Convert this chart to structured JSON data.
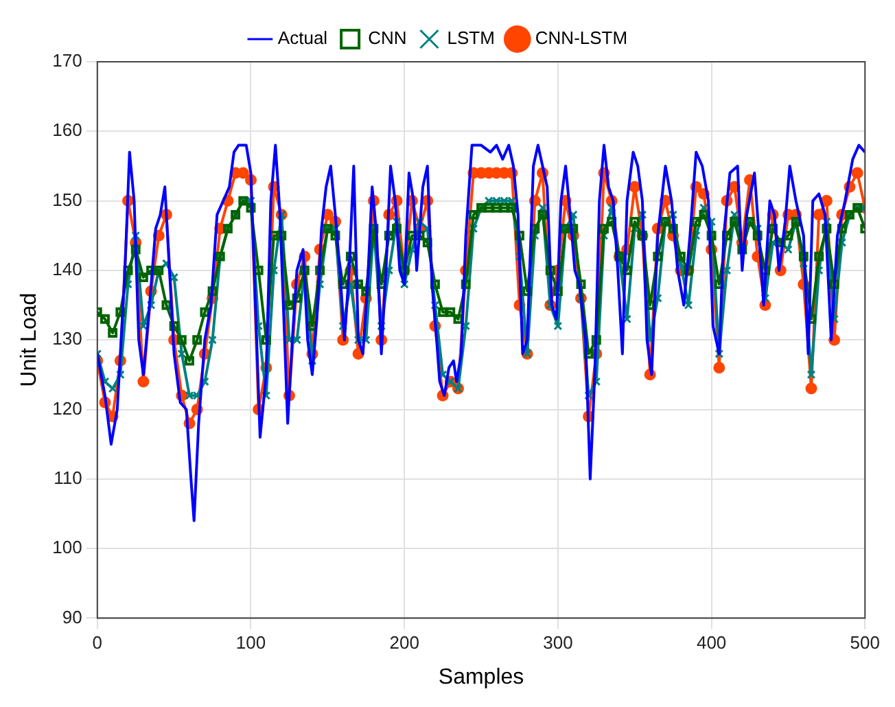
{
  "chart_data": {
    "type": "line",
    "xlabel": "Samples",
    "ylabel": "Unit Load",
    "xlim": [
      0,
      500
    ],
    "xticks": [
      0,
      100,
      200,
      300,
      400,
      500
    ],
    "ylim": [
      90,
      170
    ],
    "yticks": [
      90,
      100,
      110,
      120,
      130,
      140,
      150,
      160,
      170
    ],
    "grid": true,
    "legend": "top",
    "line_style": "solid",
    "series": [
      {
        "name": "Actual",
        "color": "#0000ff",
        "marker": "none",
        "x": [
          0,
          5,
          9,
          13,
          18,
          21,
          24,
          27,
          30,
          34,
          38,
          41,
          44,
          47,
          50,
          54,
          58,
          61,
          63,
          66,
          70,
          74,
          78,
          82,
          86,
          89,
          92,
          97,
          100,
          103,
          106,
          110,
          113,
          116,
          119,
          122,
          124,
          127,
          130,
          134,
          137,
          140,
          143,
          146,
          149,
          152,
          155,
          158,
          161,
          164,
          167,
          170,
          173,
          176,
          179,
          182,
          185,
          188,
          191,
          194,
          197,
          200,
          203,
          206,
          208,
          212,
          215,
          218,
          221,
          223,
          226,
          229,
          232,
          234,
          237,
          240,
          244,
          250,
          256,
          260,
          264,
          268,
          271,
          274,
          277,
          280,
          284,
          287,
          290,
          293,
          296,
          299,
          302,
          305,
          308,
          311,
          314,
          318,
          321,
          324,
          327,
          330,
          333,
          336,
          339,
          342,
          345,
          349,
          352,
          355,
          358,
          361,
          365,
          370,
          374,
          378,
          382,
          386,
          390,
          394,
          398,
          401,
          405,
          408,
          412,
          417,
          420,
          423,
          428,
          431,
          434,
          438,
          441,
          444,
          448,
          451,
          455,
          460,
          463,
          466,
          470,
          474,
          478,
          482,
          487,
          492,
          496,
          500
        ],
        "values": [
          128,
          122,
          115,
          120,
          140,
          157,
          150,
          130,
          125,
          135,
          146,
          148,
          152,
          140,
          128,
          121,
          120,
          110,
          104,
          118,
          130,
          135,
          148,
          150,
          152,
          157,
          158,
          158,
          154,
          135,
          116,
          125,
          150,
          158,
          148,
          130,
          118,
          130,
          140,
          143,
          130,
          125,
          133,
          146,
          152,
          155,
          148,
          140,
          130,
          140,
          155,
          130,
          128,
          138,
          152,
          145,
          128,
          140,
          155,
          150,
          140,
          138,
          154,
          150,
          140,
          152,
          155,
          138,
          130,
          124,
          122,
          126,
          127,
          124,
          128,
          145,
          158,
          158,
          157,
          158,
          156,
          158,
          155,
          148,
          128,
          130,
          155,
          158,
          155,
          152,
          135,
          133,
          150,
          155,
          148,
          140,
          138,
          130,
          110,
          125,
          150,
          158,
          152,
          150,
          140,
          128,
          150,
          157,
          155,
          150,
          130,
          125,
          145,
          155,
          150,
          140,
          135,
          145,
          157,
          155,
          150,
          132,
          128,
          145,
          154,
          155,
          140,
          148,
          154,
          145,
          135,
          150,
          148,
          140,
          147,
          155,
          150,
          145,
          128,
          150,
          151,
          148,
          130,
          145,
          150,
          156,
          158,
          157
        ]
      },
      {
        "name": "CNN",
        "color": "#006400",
        "marker": "square",
        "x": [
          0,
          5,
          10,
          15,
          20,
          25,
          30,
          35,
          40,
          45,
          50,
          55,
          60,
          65,
          70,
          75,
          80,
          85,
          90,
          95,
          100,
          105,
          110,
          115,
          120,
          125,
          130,
          135,
          140,
          145,
          150,
          155,
          160,
          165,
          170,
          175,
          180,
          185,
          190,
          195,
          200,
          205,
          210,
          215,
          220,
          225,
          230,
          235,
          240,
          245,
          250,
          255,
          260,
          265,
          270,
          275,
          280,
          285,
          290,
          295,
          300,
          305,
          310,
          315,
          320,
          325,
          330,
          335,
          340,
          345,
          350,
          355,
          360,
          365,
          370,
          375,
          380,
          385,
          390,
          395,
          400,
          405,
          410,
          415,
          420,
          425,
          430,
          435,
          440,
          445,
          450,
          455,
          460,
          465,
          470,
          475,
          480,
          485,
          490,
          495,
          500
        ],
        "values": [
          134,
          133,
          131,
          134,
          140,
          143,
          139,
          140,
          140,
          135,
          132,
          130,
          127,
          130,
          134,
          137,
          142,
          146,
          148,
          150,
          149,
          140,
          130,
          145,
          145,
          135,
          136,
          140,
          132,
          140,
          146,
          145,
          138,
          142,
          138,
          137,
          146,
          138,
          145,
          146,
          140,
          145,
          145,
          144,
          138,
          134,
          134,
          133,
          138,
          148,
          149,
          149,
          149,
          149,
          149,
          145,
          137,
          146,
          148,
          140,
          137,
          146,
          146,
          138,
          128,
          130,
          146,
          147,
          142,
          140,
          147,
          145,
          135,
          142,
          147,
          146,
          142,
          140,
          147,
          148,
          145,
          138,
          145,
          147,
          143,
          147,
          145,
          140,
          146,
          144,
          145,
          147,
          142,
          133,
          142,
          146,
          138,
          146,
          148,
          149,
          146
        ]
      },
      {
        "name": "LSTM",
        "color": "#008080",
        "marker": "cross",
        "x": [
          0,
          5,
          10,
          15,
          20,
          25,
          30,
          35,
          40,
          45,
          50,
          55,
          60,
          65,
          70,
          75,
          80,
          85,
          90,
          95,
          100,
          105,
          110,
          115,
          120,
          125,
          130,
          135,
          140,
          145,
          150,
          155,
          160,
          165,
          170,
          175,
          180,
          185,
          190,
          195,
          200,
          205,
          210,
          215,
          220,
          225,
          230,
          235,
          240,
          245,
          250,
          255,
          260,
          265,
          270,
          275,
          280,
          285,
          290,
          295,
          300,
          305,
          310,
          315,
          320,
          325,
          330,
          335,
          340,
          345,
          350,
          355,
          360,
          365,
          370,
          375,
          380,
          385,
          390,
          395,
          400,
          405,
          410,
          415,
          420,
          425,
          430,
          435,
          440,
          445,
          450,
          455,
          460,
          465,
          470,
          475,
          480,
          485,
          490,
          495,
          500
        ],
        "values": [
          128,
          124,
          123,
          125,
          138,
          145,
          132,
          135,
          140,
          141,
          139,
          128,
          122,
          122,
          124,
          130,
          142,
          146,
          148,
          150,
          150,
          132,
          122,
          140,
          148,
          130,
          130,
          140,
          127,
          138,
          146,
          146,
          132,
          138,
          130,
          130,
          146,
          132,
          140,
          147,
          138,
          143,
          147,
          146,
          135,
          125,
          124,
          123,
          132,
          146,
          149,
          150,
          150,
          150,
          150,
          142,
          128,
          145,
          149,
          135,
          132,
          146,
          148,
          136,
          122,
          124,
          145,
          149,
          142,
          133,
          146,
          148,
          130,
          136,
          147,
          148,
          141,
          135,
          145,
          149,
          147,
          128,
          140,
          148,
          143,
          147,
          146,
          136,
          144,
          144,
          143,
          147,
          141,
          125,
          140,
          147,
          133,
          144,
          148,
          149,
          149
        ]
      },
      {
        "name": "CNN-LSTM",
        "color": "#ff4500",
        "marker": "circle",
        "x": [
          0,
          5,
          10,
          15,
          20,
          25,
          30,
          35,
          40,
          45,
          50,
          55,
          60,
          65,
          70,
          75,
          80,
          85,
          90,
          95,
          100,
          105,
          110,
          115,
          120,
          125,
          130,
          135,
          140,
          145,
          150,
          155,
          160,
          165,
          170,
          175,
          180,
          185,
          190,
          195,
          200,
          205,
          210,
          215,
          220,
          225,
          230,
          235,
          240,
          245,
          250,
          255,
          260,
          265,
          270,
          275,
          280,
          285,
          290,
          295,
          300,
          305,
          310,
          315,
          320,
          325,
          330,
          335,
          340,
          345,
          350,
          355,
          360,
          365,
          370,
          375,
          380,
          385,
          390,
          395,
          400,
          405,
          410,
          415,
          420,
          425,
          430,
          435,
          440,
          445,
          450,
          455,
          460,
          465,
          470,
          475,
          480,
          485,
          490,
          495,
          500
        ],
        "values": [
          127,
          121,
          119,
          127,
          150,
          144,
          124,
          137,
          145,
          148,
          130,
          122,
          118,
          120,
          128,
          136,
          146,
          150,
          154,
          154,
          153,
          120,
          126,
          152,
          148,
          122,
          138,
          142,
          128,
          143,
          148,
          147,
          130,
          140,
          128,
          136,
          150,
          130,
          148,
          150,
          140,
          150,
          146,
          150,
          132,
          122,
          124,
          123,
          140,
          154,
          154,
          154,
          154,
          154,
          154,
          135,
          128,
          150,
          154,
          135,
          140,
          150,
          145,
          136,
          119,
          128,
          154,
          150,
          142,
          143,
          152,
          145,
          125,
          146,
          150,
          145,
          140,
          140,
          152,
          151,
          143,
          126,
          150,
          152,
          144,
          153,
          142,
          135,
          148,
          140,
          148,
          148,
          138,
          123,
          148,
          150,
          130,
          148,
          152,
          154,
          149
        ]
      }
    ]
  }
}
